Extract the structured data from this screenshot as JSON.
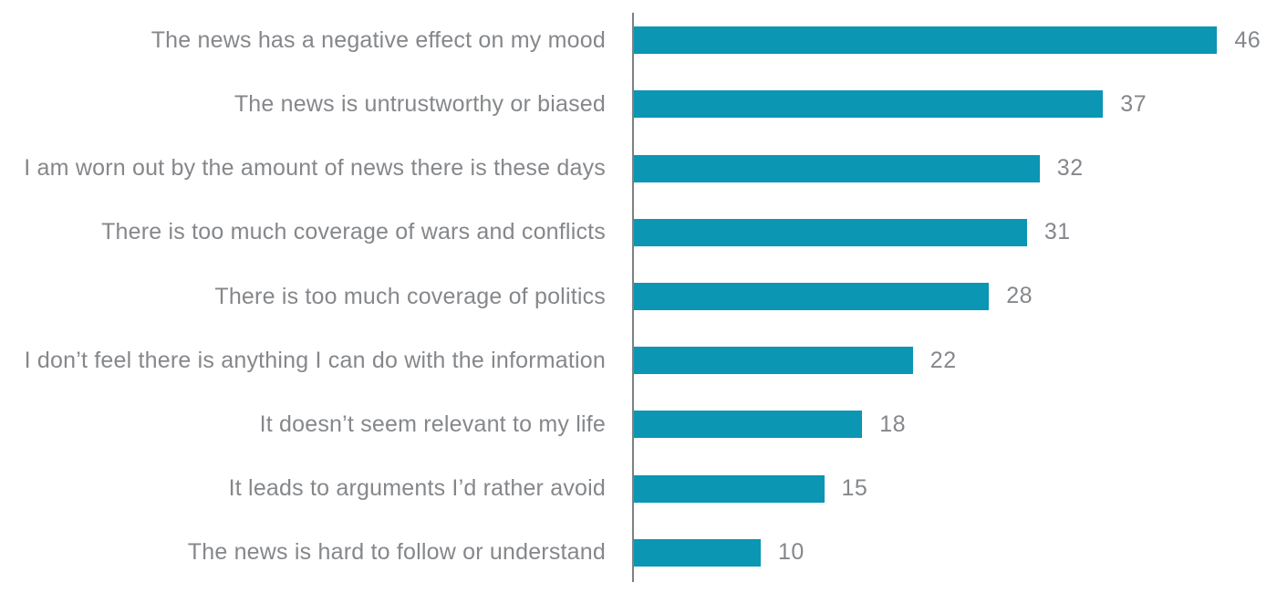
{
  "chart_data": {
    "type": "bar",
    "orientation": "horizontal",
    "title": "",
    "xlabel": "",
    "ylabel": "",
    "categories": [
      "The news has a negative effect on my mood",
      "The news is untrustworthy or biased",
      "I am worn out by the amount of news there is these days",
      "There is too much coverage of wars and conflicts",
      "There is too much coverage of politics",
      "I don’t feel there is anything I can do with the information",
      "It doesn’t seem relevant to my life",
      "It leads to arguments I’d rather avoid",
      "The news is hard to follow or understand"
    ],
    "values": [
      46,
      37,
      32,
      31,
      28,
      22,
      18,
      15,
      10
    ],
    "xlim": [
      0,
      46
    ],
    "grid": false,
    "legend": false,
    "value_labels_shown": true,
    "bar_color": "#0b96b4",
    "text_color": "#85878a",
    "axis_line_color": "#7d7f81"
  }
}
